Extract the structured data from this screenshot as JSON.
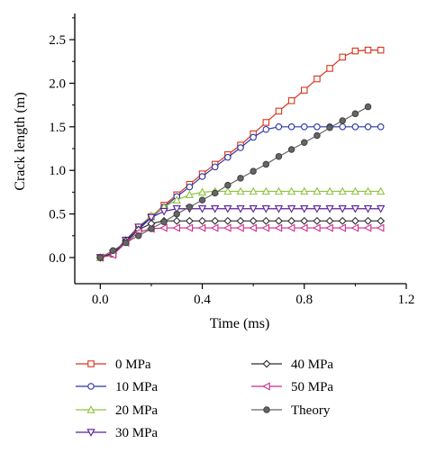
{
  "chart_data": {
    "type": "line",
    "xlabel": "Time (ms)",
    "ylabel": "Crack length (m)",
    "xlim": [
      -0.1,
      1.2
    ],
    "ylim": [
      -0.3,
      2.8
    ],
    "xticks": [
      0.0,
      0.4,
      0.8,
      1.2
    ],
    "xtick_labels": [
      "0.0",
      "0.4",
      "0.8",
      "1.2"
    ],
    "yticks": [
      0.0,
      0.5,
      1.0,
      1.5,
      2.0,
      2.5
    ],
    "ytick_labels": [
      "0.0",
      "0.5",
      "1.0",
      "1.5",
      "2.0",
      "2.5"
    ],
    "grid": false,
    "legend_position": "bottom",
    "series": [
      {
        "name": "0 MPa",
        "color": "#d8341a",
        "marker": "square",
        "x": [
          0.0,
          0.05,
          0.1,
          0.15,
          0.2,
          0.25,
          0.3,
          0.35,
          0.4,
          0.45,
          0.5,
          0.55,
          0.6,
          0.65,
          0.7,
          0.75,
          0.8,
          0.85,
          0.9,
          0.95,
          1.0,
          1.05,
          1.1
        ],
        "y": [
          0.0,
          0.04,
          0.18,
          0.33,
          0.47,
          0.6,
          0.72,
          0.84,
          0.96,
          1.07,
          1.18,
          1.29,
          1.42,
          1.55,
          1.68,
          1.8,
          1.92,
          2.05,
          2.17,
          2.3,
          2.37,
          2.38,
          2.38
        ]
      },
      {
        "name": "10 MPa",
        "color": "#2a36a8",
        "marker": "circle",
        "x": [
          0.0,
          0.05,
          0.1,
          0.15,
          0.2,
          0.25,
          0.3,
          0.35,
          0.4,
          0.45,
          0.5,
          0.55,
          0.6,
          0.65,
          0.7,
          0.75,
          0.8,
          0.85,
          0.9,
          0.95,
          1.0,
          1.05,
          1.1
        ],
        "y": [
          0.0,
          0.04,
          0.18,
          0.32,
          0.46,
          0.58,
          0.7,
          0.81,
          0.93,
          1.04,
          1.15,
          1.26,
          1.38,
          1.47,
          1.5,
          1.5,
          1.5,
          1.5,
          1.5,
          1.5,
          1.5,
          1.5,
          1.5
        ]
      },
      {
        "name": "20 MPa",
        "color": "#8fc33e",
        "marker": "triangle-up",
        "x": [
          0.0,
          0.05,
          0.1,
          0.15,
          0.2,
          0.25,
          0.3,
          0.35,
          0.4,
          0.45,
          0.5,
          0.55,
          0.6,
          0.65,
          0.7,
          0.75,
          0.8,
          0.85,
          0.9,
          0.95,
          1.0,
          1.05,
          1.1
        ],
        "y": [
          0.0,
          0.05,
          0.2,
          0.35,
          0.48,
          0.58,
          0.66,
          0.72,
          0.75,
          0.76,
          0.76,
          0.76,
          0.76,
          0.76,
          0.76,
          0.76,
          0.76,
          0.76,
          0.76,
          0.76,
          0.76,
          0.76,
          0.76
        ]
      },
      {
        "name": "30 MPa",
        "color": "#5a1e9a",
        "marker": "triangle-down",
        "x": [
          0.0,
          0.05,
          0.1,
          0.15,
          0.2,
          0.25,
          0.3,
          0.35,
          0.4,
          0.45,
          0.5,
          0.55,
          0.6,
          0.65,
          0.7,
          0.75,
          0.8,
          0.85,
          0.9,
          0.95,
          1.0,
          1.05,
          1.1
        ],
        "y": [
          0.0,
          0.05,
          0.2,
          0.35,
          0.46,
          0.53,
          0.56,
          0.56,
          0.56,
          0.56,
          0.56,
          0.56,
          0.56,
          0.56,
          0.56,
          0.56,
          0.56,
          0.56,
          0.56,
          0.56,
          0.56,
          0.56,
          0.56
        ]
      },
      {
        "name": "40 MPa",
        "color": "#2f2f2f",
        "marker": "diamond",
        "x": [
          0.0,
          0.05,
          0.1,
          0.15,
          0.2,
          0.25,
          0.3,
          0.35,
          0.4,
          0.45,
          0.5,
          0.55,
          0.6,
          0.65,
          0.7,
          0.75,
          0.8,
          0.85,
          0.9,
          0.95,
          1.0,
          1.05,
          1.1
        ],
        "y": [
          0.0,
          0.05,
          0.19,
          0.32,
          0.39,
          0.42,
          0.42,
          0.42,
          0.42,
          0.42,
          0.42,
          0.42,
          0.42,
          0.42,
          0.42,
          0.42,
          0.42,
          0.42,
          0.42,
          0.42,
          0.42,
          0.42,
          0.42
        ]
      },
      {
        "name": "50 MPa",
        "color": "#cc2b8a",
        "marker": "triangle-left",
        "x": [
          0.0,
          0.05,
          0.1,
          0.15,
          0.2,
          0.25,
          0.3,
          0.35,
          0.4,
          0.45,
          0.5,
          0.55,
          0.6,
          0.65,
          0.7,
          0.75,
          0.8,
          0.85,
          0.9,
          0.95,
          1.0,
          1.05,
          1.1
        ],
        "y": [
          0.0,
          0.03,
          0.17,
          0.29,
          0.33,
          0.34,
          0.34,
          0.34,
          0.34,
          0.34,
          0.34,
          0.34,
          0.34,
          0.34,
          0.34,
          0.34,
          0.34,
          0.34,
          0.34,
          0.34,
          0.34,
          0.34,
          0.34
        ]
      },
      {
        "name": "Theory",
        "color": "#666666",
        "marker": "circle-filled",
        "x": [
          0.0,
          0.05,
          0.1,
          0.15,
          0.2,
          0.25,
          0.3,
          0.35,
          0.4,
          0.45,
          0.5,
          0.55,
          0.6,
          0.65,
          0.7,
          0.75,
          0.8,
          0.85,
          0.9,
          0.95,
          1.0,
          1.05
        ],
        "y": [
          0.0,
          0.08,
          0.17,
          0.25,
          0.33,
          0.41,
          0.5,
          0.58,
          0.66,
          0.74,
          0.83,
          0.91,
          0.99,
          1.07,
          1.16,
          1.24,
          1.32,
          1.4,
          1.49,
          1.57,
          1.65,
          1.73
        ]
      }
    ]
  }
}
